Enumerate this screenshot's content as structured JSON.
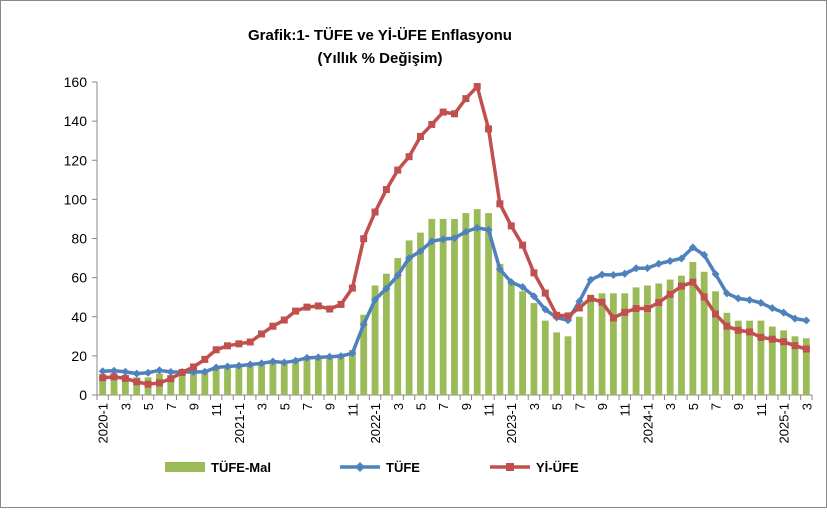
{
  "chart_data": {
    "type": "combo",
    "title": "Grafik:1- TÜFE ve Yİ-ÜFE Enflasyonu",
    "subtitle": "(Yıllık % Değişim)",
    "categories": [
      "2020-1",
      null,
      "3",
      null,
      "5",
      null,
      "7",
      null,
      "9",
      null,
      "11",
      null,
      "2021-1",
      null,
      "3",
      null,
      "5",
      null,
      "7",
      null,
      "9",
      null,
      "11",
      null,
      "2022-1",
      null,
      "3",
      null,
      "5",
      null,
      "7",
      null,
      "9",
      null,
      "11",
      null,
      "2023-1",
      null,
      "3",
      null,
      "5",
      null,
      "7",
      null,
      "9",
      null,
      "11",
      null,
      "2024-1",
      null,
      "3",
      null,
      "5",
      null,
      "7",
      null,
      "9",
      null,
      "11",
      null,
      "2025-1",
      null,
      "3"
    ],
    "series": [
      {
        "name": "TÜFE-Mal",
        "type": "bar",
        "color": "#9bbb59",
        "values": [
          10,
          10,
          10,
          9,
          9,
          11,
          10,
          11,
          11,
          12,
          14,
          15,
          15,
          16,
          16,
          17,
          16,
          17,
          19,
          20,
          20,
          21,
          23,
          41,
          56,
          62,
          70,
          79,
          83,
          90,
          90,
          90,
          93,
          95,
          93,
          67,
          58,
          53,
          47,
          38,
          32,
          30,
          40,
          50,
          52,
          52,
          52,
          55,
          56,
          57,
          59,
          61,
          68,
          63,
          53,
          42,
          38,
          38,
          38,
          35,
          33,
          30,
          29
        ]
      },
      {
        "name": "TÜFE",
        "type": "line",
        "marker": "diamond",
        "color": "#4f81bd",
        "values": [
          12.15,
          12.37,
          11.86,
          10.94,
          11.39,
          12.62,
          11.76,
          11.77,
          11.75,
          11.89,
          14.03,
          14.6,
          14.97,
          15.61,
          16.19,
          17.14,
          16.59,
          17.53,
          18.95,
          19.25,
          19.58,
          19.89,
          21.31,
          36.08,
          48.69,
          54.44,
          61.14,
          69.97,
          73.5,
          78.62,
          79.6,
          80.21,
          83.45,
          85.51,
          84.39,
          64.27,
          57.68,
          55.18,
          50.51,
          43.68,
          39.59,
          38.21,
          47.83,
          58.94,
          61.53,
          61.36,
          61.98,
          64.77,
          64.86,
          67.07,
          68.5,
          69.8,
          75.45,
          71.6,
          61.78,
          51.97,
          49.38,
          48.58,
          47.09,
          44.38,
          42.12,
          39.05,
          38.1
        ]
      },
      {
        "name": "Yİ-ÜFE",
        "type": "line",
        "marker": "square",
        "color": "#c0504d",
        "values": [
          8.84,
          9.26,
          8.5,
          6.71,
          5.53,
          6.17,
          8.33,
          11.53,
          14.33,
          18.2,
          23.11,
          25.15,
          26.16,
          27.09,
          31.2,
          35.17,
          38.33,
          42.89,
          44.92,
          45.52,
          43.96,
          46.31,
          54.62,
          79.89,
          93.53,
          105.01,
          114.97,
          121.82,
          132.16,
          138.31,
          144.61,
          143.75,
          151.5,
          157.69,
          136.02,
          97.72,
          86.46,
          76.61,
          62.43,
          52.11,
          40.76,
          40.42,
          44.5,
          49.41,
          47.44,
          39.39,
          42.25,
          44.22,
          44.2,
          47.29,
          51.47,
          55.66,
          57.68,
          50.09,
          41.37,
          35.17,
          33.09,
          32.24,
          29.47,
          28.52,
          27.2,
          25.21,
          23.5
        ]
      }
    ],
    "ylim": [
      0,
      160
    ],
    "yticks": [
      0,
      20,
      40,
      60,
      80,
      100,
      120,
      140,
      160
    ],
    "grid": false,
    "legend": "bottom"
  }
}
